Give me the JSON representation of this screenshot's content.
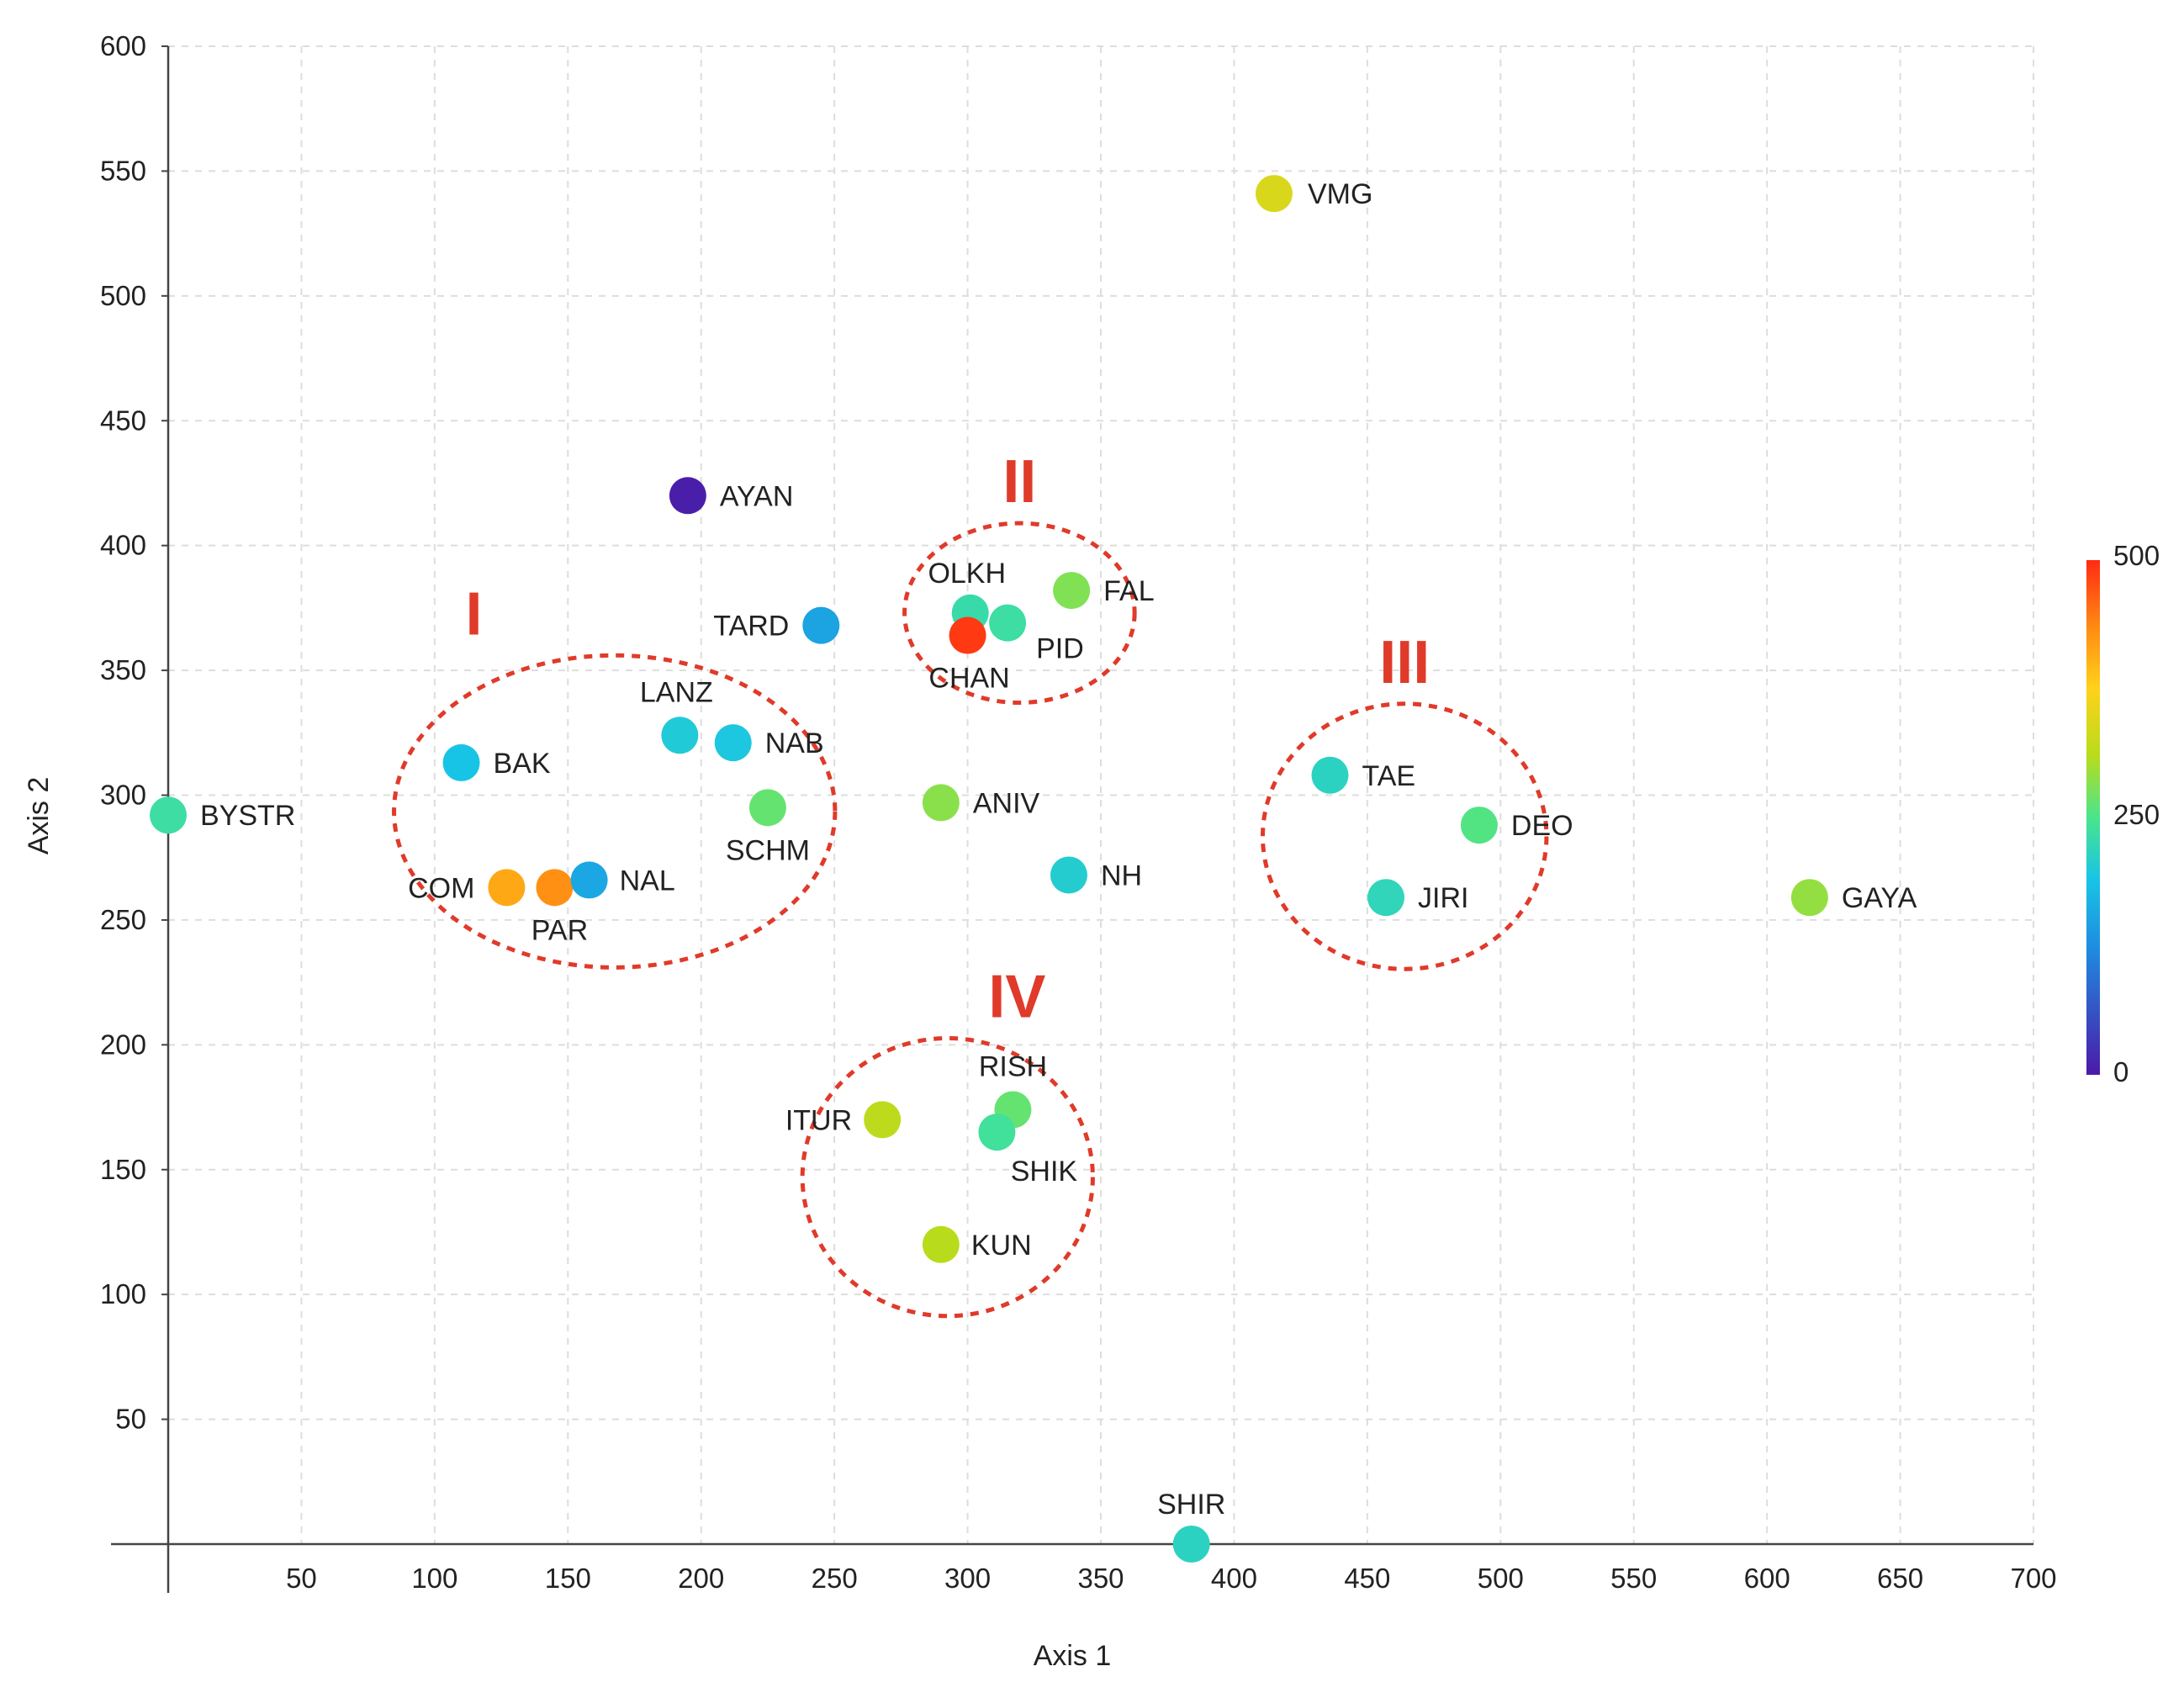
{
  "chart_data": {
    "type": "scatter",
    "xlabel": "Axis 1",
    "ylabel": "Axis 2",
    "xlim": [
      0,
      700
    ],
    "ylim": [
      0,
      600
    ],
    "x_ticks": [
      "50",
      "100",
      "150",
      "200",
      "250",
      "300",
      "350",
      "400",
      "450",
      "500",
      "550",
      "600",
      "650",
      "700"
    ],
    "y_ticks": [
      "50",
      "100",
      "150",
      "200",
      "250",
      "300",
      "350",
      "400",
      "450",
      "500",
      "550",
      "600"
    ],
    "grid": true,
    "colorbar": {
      "min": 0,
      "max": 500,
      "tick_labels": [
        "0",
        "250",
        "500"
      ],
      "placement": "right"
    },
    "points": [
      {
        "label": "VMG",
        "x": 415,
        "y": 541,
        "value": 340
      },
      {
        "label": "AYAN",
        "x": 195,
        "y": 420,
        "value": 5
      },
      {
        "label": "TARD",
        "x": 245,
        "y": 368,
        "value": 150
      },
      {
        "label": "OLKH",
        "x": 301,
        "y": 373,
        "value": 230
      },
      {
        "label": "PID",
        "x": 315,
        "y": 369,
        "value": 235
      },
      {
        "label": "CHAN",
        "x": 300,
        "y": 364,
        "value": 490
      },
      {
        "label": "FAL",
        "x": 339,
        "y": 382,
        "value": 280
      },
      {
        "label": "LANZ",
        "x": 192,
        "y": 324,
        "value": 200
      },
      {
        "label": "NAB",
        "x": 212,
        "y": 321,
        "value": 195
      },
      {
        "label": "BAK",
        "x": 110,
        "y": 313,
        "value": 190
      },
      {
        "label": "SCHM",
        "x": 225,
        "y": 295,
        "value": 265
      },
      {
        "label": "BYSTR",
        "x": 0,
        "y": 292,
        "value": 235
      },
      {
        "label": "ANIV",
        "x": 290,
        "y": 297,
        "value": 285
      },
      {
        "label": "COM",
        "x": 127,
        "y": 263,
        "value": 410
      },
      {
        "label": "PAR",
        "x": 145,
        "y": 263,
        "value": 430
      },
      {
        "label": "NAL",
        "x": 158,
        "y": 266,
        "value": 155
      },
      {
        "label": "NH",
        "x": 338,
        "y": 268,
        "value": 205
      },
      {
        "label": "TAE",
        "x": 436,
        "y": 308,
        "value": 215
      },
      {
        "label": "DEO",
        "x": 492,
        "y": 288,
        "value": 255
      },
      {
        "label": "JIRI",
        "x": 457,
        "y": 259,
        "value": 220
      },
      {
        "label": "GAYA",
        "x": 616,
        "y": 259,
        "value": 290
      },
      {
        "label": "RISH",
        "x": 317,
        "y": 174,
        "value": 265
      },
      {
        "label": "SHIK",
        "x": 311,
        "y": 165,
        "value": 240
      },
      {
        "label": "ITUR",
        "x": 268,
        "y": 170,
        "value": 315
      },
      {
        "label": "KUN",
        "x": 290,
        "y": 120,
        "value": 310
      },
      {
        "label": "SHIR",
        "x": 384,
        "y": 0,
        "value": 215
      }
    ],
    "clusters": [
      {
        "label": "I",
        "members": [
          "BAK",
          "LANZ",
          "NAB",
          "SCHM",
          "COM",
          "PAR",
          "NAL"
        ]
      },
      {
        "label": "II",
        "members": [
          "OLKH",
          "FAL",
          "PID",
          "CHAN"
        ]
      },
      {
        "label": "III",
        "members": [
          "TAE",
          "DEO",
          "JIRI"
        ]
      },
      {
        "label": "IV",
        "members": [
          "RISH",
          "ITUR",
          "SHIK",
          "KUN"
        ]
      }
    ]
  }
}
